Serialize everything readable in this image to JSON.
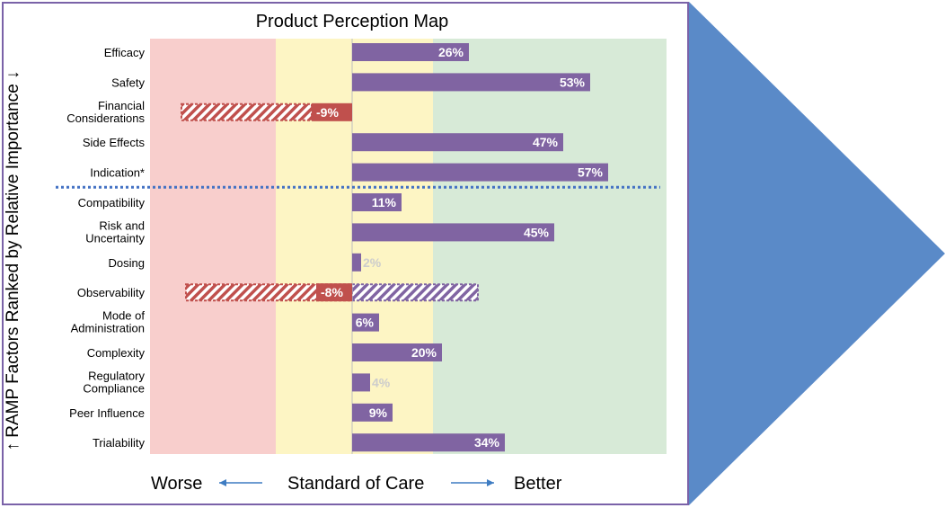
{
  "chart_data": {
    "type": "bar",
    "orientation": "horizontal",
    "title": "Product Perception Map",
    "ylabel": "RAMP Factors Ranked by Relative Importance",
    "xlabel_left": "Worse",
    "xlabel_center": "Standard of Care",
    "xlabel_right": "Better",
    "categories": [
      "Efficacy",
      "Safety",
      "Financial Considerations",
      "Side Effects",
      "Indication*",
      "Compatibility",
      "Risk and Uncertainty",
      "Dosing",
      "Observability",
      "Mode of Administration",
      "Complexity",
      "Regulatory Compliance",
      "Peer Influence",
      "Trialability"
    ],
    "values": [
      26,
      53,
      -9,
      47,
      57,
      11,
      45,
      2,
      -8,
      6,
      20,
      4,
      9,
      34
    ],
    "value_labels": [
      "26%",
      "53%",
      "-9%",
      "47%",
      "57%",
      "11%",
      "45%",
      "2%",
      "-8%",
      "6%",
      "20%",
      "4%",
      "9%",
      "34%"
    ],
    "hatched_range": [
      null,
      null,
      [
        -38,
        -9
      ],
      null,
      null,
      null,
      null,
      null,
      [
        -37,
        28
      ],
      null,
      null,
      null,
      null,
      null
    ],
    "divider_after_index": 4,
    "zones": [
      {
        "name": "worse",
        "range": [
          -45,
          -17
        ],
        "color": "#f8cecc"
      },
      {
        "name": "standard",
        "range": [
          -17,
          18
        ],
        "color": "#fdf5c4"
      },
      {
        "name": "better",
        "range": [
          18,
          70
        ],
        "color": "#d7ead7"
      }
    ],
    "xlim": [
      -45,
      70
    ],
    "colors": {
      "bar_positive": "#8064a2",
      "bar_negative": "#c0504d",
      "hatch_negative": "#c0504d",
      "hatch_positive": "#8064a2",
      "divider": "#4472c4",
      "arrow": "#5a8ac8",
      "frame": "#7a62a8",
      "axis_arrow": "#3e7cc2"
    }
  }
}
